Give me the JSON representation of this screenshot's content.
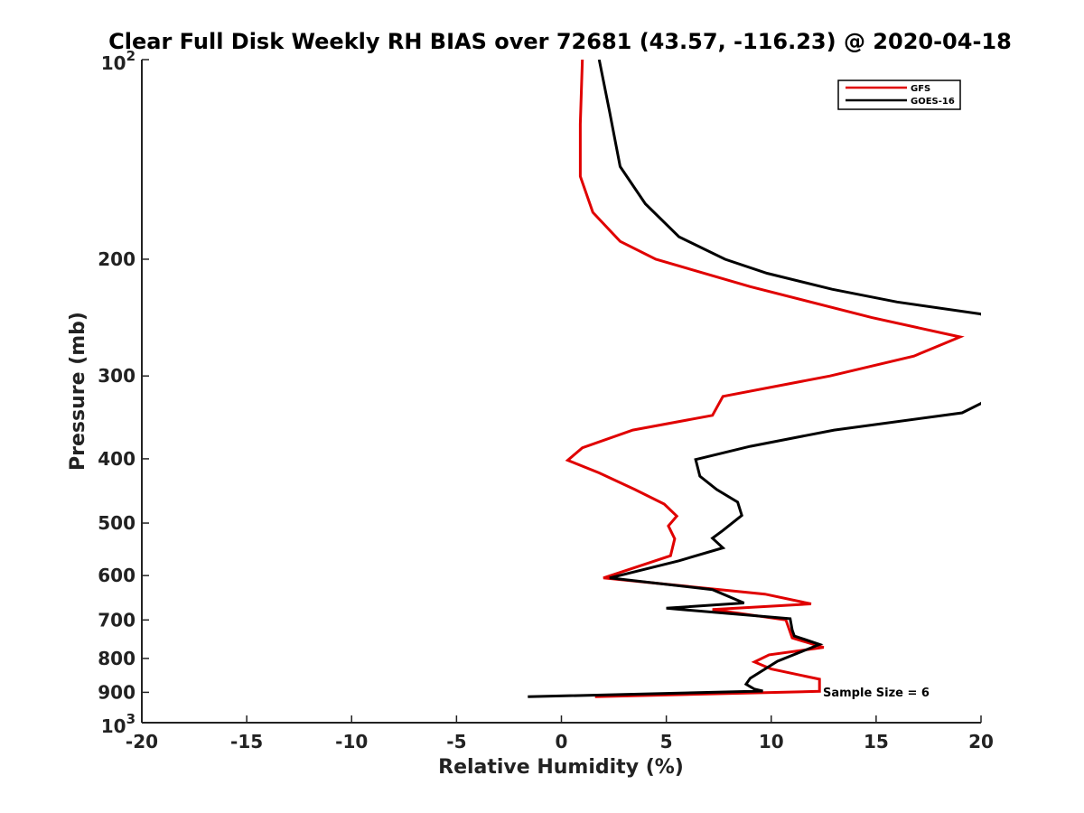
{
  "chart_data": {
    "type": "line",
    "title": "Clear Full Disk Weekly RH BIAS over 72681 (43.57, -116.23) @ 2020-04-18",
    "xlabel": "Relative Humidity (%)",
    "ylabel": "Pressure (mb)",
    "xlim": [
      -20,
      20
    ],
    "ylim": [
      100,
      1000
    ],
    "y_scale": "log",
    "y_reversed": true,
    "grid": false,
    "legend_position": "top-right",
    "x_ticks": [
      "-20",
      "-15",
      "-10",
      "-5",
      "0",
      "5",
      "10",
      "15",
      "20"
    ],
    "y_ticks": [
      {
        "value": 100,
        "label": "10",
        "sup": "2"
      },
      {
        "value": 200,
        "label": "200"
      },
      {
        "value": 300,
        "label": "300"
      },
      {
        "value": 400,
        "label": "400"
      },
      {
        "value": 500,
        "label": "500"
      },
      {
        "value": 600,
        "label": "600"
      },
      {
        "value": 700,
        "label": "700"
      },
      {
        "value": 800,
        "label": "800"
      },
      {
        "value": 900,
        "label": "900"
      },
      {
        "value": 1000,
        "label": "10",
        "sup": "3"
      }
    ],
    "annotation": "Sample Size = 6",
    "series": [
      {
        "name": "GFS",
        "color": "#e00000",
        "points": [
          [
            1.0,
            100
          ],
          [
            0.9,
            125
          ],
          [
            0.9,
            150
          ],
          [
            1.5,
            170
          ],
          [
            2.8,
            188
          ],
          [
            4.5,
            200
          ],
          [
            9.0,
            220
          ],
          [
            14.8,
            245
          ],
          [
            19.0,
            262
          ],
          [
            16.8,
            280
          ],
          [
            12.8,
            300
          ],
          [
            7.7,
            322
          ],
          [
            7.2,
            344
          ],
          [
            3.4,
            362
          ],
          [
            1.0,
            385
          ],
          [
            0.3,
            402
          ],
          [
            1.8,
            420
          ],
          [
            3.5,
            445
          ],
          [
            4.9,
            468
          ],
          [
            5.5,
            488
          ],
          [
            5.1,
            505
          ],
          [
            5.4,
            528
          ],
          [
            5.2,
            560
          ],
          [
            2.0,
            605
          ],
          [
            9.7,
            640
          ],
          [
            11.9,
            662
          ],
          [
            7.2,
            675
          ],
          [
            10.7,
            700
          ],
          [
            11.0,
            745
          ],
          [
            12.5,
            770
          ],
          [
            9.9,
            790
          ],
          [
            9.2,
            810
          ],
          [
            10.0,
            830
          ],
          [
            12.3,
            860
          ],
          [
            12.3,
            880
          ],
          [
            12.3,
            897
          ],
          [
            1.6,
            914
          ]
        ]
      },
      {
        "name": "GOES-16",
        "color": "#000000",
        "points": [
          [
            1.8,
            100
          ],
          [
            2.3,
            120
          ],
          [
            2.8,
            145
          ],
          [
            4.0,
            165
          ],
          [
            5.6,
            185
          ],
          [
            7.8,
            200
          ],
          [
            9.8,
            210
          ],
          [
            12.9,
            222
          ],
          [
            16.0,
            232
          ],
          [
            20.0,
            242
          ],
          [
            21.0,
            260
          ],
          [
            21.0,
            310
          ],
          [
            20.0,
            330
          ],
          [
            19.1,
            341
          ],
          [
            13.0,
            362
          ],
          [
            9.0,
            383
          ],
          [
            6.4,
            401
          ],
          [
            6.6,
            425
          ],
          [
            7.4,
            445
          ],
          [
            8.4,
            465
          ],
          [
            8.6,
            487
          ],
          [
            7.7,
            513
          ],
          [
            7.2,
            527
          ],
          [
            7.7,
            545
          ],
          [
            5.6,
            570
          ],
          [
            2.3,
            605
          ],
          [
            7.2,
            630
          ],
          [
            8.7,
            660
          ],
          [
            5.0,
            672
          ],
          [
            10.9,
            697
          ],
          [
            11.0,
            725
          ],
          [
            11.1,
            740
          ],
          [
            12.3,
            762
          ],
          [
            10.3,
            808
          ],
          [
            9.0,
            857
          ],
          [
            8.8,
            875
          ],
          [
            9.2,
            890
          ],
          [
            9.6,
            896
          ],
          [
            -1.6,
            914
          ]
        ]
      }
    ]
  }
}
